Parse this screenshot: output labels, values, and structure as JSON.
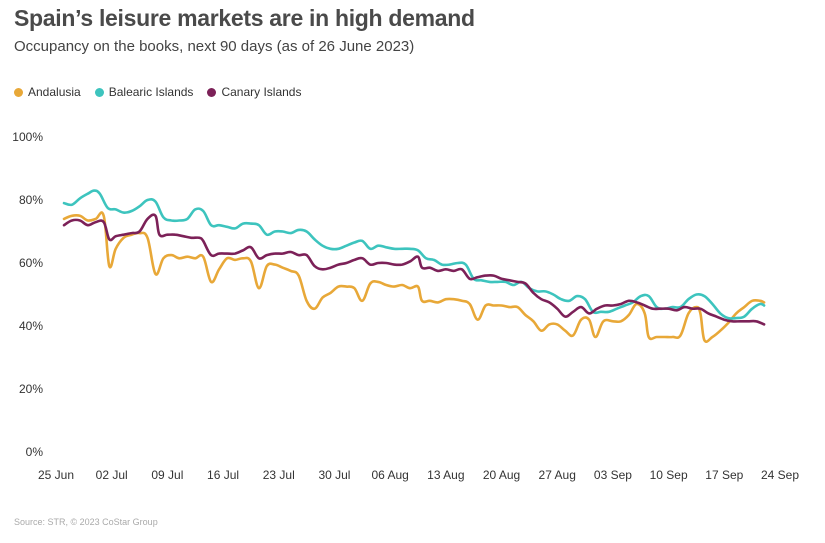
{
  "chart_data": {
    "type": "line",
    "title": "Spain’s leisure markets are in high demand",
    "subtitle": "Occupancy on the books, next 90 days (as of 26 June 2023)",
    "source": "Source: STR, © 2023 CoStar Group",
    "ylim": [
      0,
      100
    ],
    "yticks": [
      "0%",
      "20%",
      "40%",
      "60%",
      "80%",
      "100%"
    ],
    "ytick_values": [
      0,
      20,
      40,
      60,
      80,
      100
    ],
    "xlim": [
      0,
      91
    ],
    "xticks": [
      "25 Jun",
      "02 Jul",
      "09 Jul",
      "16 Jul",
      "23 Jul",
      "30 Jul",
      "06 Aug",
      "13 Aug",
      "20 Aug",
      "27 Aug",
      "03 Sep",
      "10 Sep",
      "17 Sep",
      "24 Sep"
    ],
    "xtick_values": [
      0,
      7,
      14,
      21,
      28,
      35,
      42,
      49,
      56,
      63,
      70,
      77,
      84,
      91
    ],
    "legend_position": "top-left",
    "grid": false,
    "series": [
      {
        "name": "Andalusia",
        "color": "#E8A838",
        "points": [
          [
            1,
            74
          ],
          [
            2,
            75
          ],
          [
            3,
            75
          ],
          [
            4,
            73.5
          ],
          [
            5,
            74
          ],
          [
            6,
            75
          ],
          [
            6.7,
            59
          ],
          [
            7.5,
            64.5
          ],
          [
            8.5,
            68
          ],
          [
            9.5,
            69
          ],
          [
            10.5,
            69.5
          ],
          [
            11.5,
            68
          ],
          [
            12.5,
            56.5
          ],
          [
            13.5,
            61.5
          ],
          [
            14.5,
            62.5
          ],
          [
            15.5,
            61.5
          ],
          [
            16.5,
            62
          ],
          [
            17.5,
            61.5
          ],
          [
            18.5,
            62
          ],
          [
            19.5,
            54
          ],
          [
            20.5,
            58
          ],
          [
            21.5,
            61.5
          ],
          [
            22.5,
            61
          ],
          [
            23.5,
            61.5
          ],
          [
            24.5,
            60.5
          ],
          [
            25.5,
            52
          ],
          [
            26.5,
            59
          ],
          [
            27.5,
            59.5
          ],
          [
            28.5,
            58.5
          ],
          [
            29.5,
            57.5
          ],
          [
            30.5,
            56
          ],
          [
            31.5,
            48
          ],
          [
            32.5,
            45.5
          ],
          [
            33.5,
            49
          ],
          [
            34.5,
            50.5
          ],
          [
            35.5,
            52.5
          ],
          [
            36.5,
            52.5
          ],
          [
            37.5,
            52
          ],
          [
            38.5,
            48
          ],
          [
            39.5,
            53.5
          ],
          [
            40.5,
            54
          ],
          [
            41.5,
            53
          ],
          [
            42.5,
            52.5
          ],
          [
            43.5,
            53
          ],
          [
            44.5,
            52
          ],
          [
            45.5,
            52.5
          ],
          [
            46,
            48
          ],
          [
            47,
            48
          ],
          [
            48,
            47.5
          ],
          [
            49,
            48.5
          ],
          [
            50,
            48.5
          ],
          [
            51,
            48
          ],
          [
            52,
            47
          ],
          [
            53,
            42
          ],
          [
            54,
            46.5
          ],
          [
            55,
            46.5
          ],
          [
            56,
            46.5
          ],
          [
            57,
            46
          ],
          [
            58,
            46
          ],
          [
            59,
            43.5
          ],
          [
            60,
            41.5
          ],
          [
            61,
            38.5
          ],
          [
            62,
            40.5
          ],
          [
            63,
            40.5
          ],
          [
            64,
            38.5
          ],
          [
            65,
            37
          ],
          [
            66,
            42
          ],
          [
            67,
            42
          ],
          [
            67.8,
            36.5
          ],
          [
            68.8,
            41.5
          ],
          [
            70,
            41.5
          ],
          [
            71,
            41.5
          ],
          [
            72,
            43.5
          ],
          [
            73,
            47
          ],
          [
            74,
            44
          ],
          [
            74.5,
            36.5
          ],
          [
            75.5,
            36.5
          ],
          [
            76.5,
            36.5
          ],
          [
            77.5,
            36.5
          ],
          [
            78.5,
            37
          ],
          [
            79.5,
            44
          ],
          [
            80.5,
            46
          ],
          [
            81,
            44
          ],
          [
            81.5,
            35.5
          ],
          [
            82.5,
            36.5
          ],
          [
            83.5,
            38.5
          ],
          [
            84.5,
            41
          ],
          [
            85.5,
            44
          ],
          [
            86.5,
            46
          ],
          [
            87.5,
            48
          ],
          [
            88.5,
            48
          ],
          [
            89,
            47.5
          ]
        ]
      },
      {
        "name": "Balearic Islands",
        "color": "#3DC4BE",
        "points": [
          [
            1,
            79
          ],
          [
            2,
            78.5
          ],
          [
            3,
            80.5
          ],
          [
            4,
            82
          ],
          [
            4.8,
            83
          ],
          [
            5.5,
            82
          ],
          [
            6.5,
            77.5
          ],
          [
            7.5,
            77
          ],
          [
            8.5,
            76
          ],
          [
            9.5,
            76.5
          ],
          [
            10.5,
            78
          ],
          [
            11.5,
            80
          ],
          [
            12.5,
            79.5
          ],
          [
            13.5,
            74.5
          ],
          [
            14.5,
            73.5
          ],
          [
            15.5,
            73.5
          ],
          [
            16.5,
            74
          ],
          [
            17.5,
            77
          ],
          [
            18.5,
            76.5
          ],
          [
            19.5,
            72
          ],
          [
            20.5,
            72
          ],
          [
            21.5,
            71.5
          ],
          [
            22.5,
            71
          ],
          [
            23.5,
            72.5
          ],
          [
            24.5,
            72.5
          ],
          [
            25.5,
            72
          ],
          [
            26.5,
            69
          ],
          [
            27.5,
            70
          ],
          [
            28.5,
            70
          ],
          [
            29.5,
            69.5
          ],
          [
            30.5,
            70.5
          ],
          [
            31.5,
            70
          ],
          [
            32.5,
            67.5
          ],
          [
            33.5,
            65.5
          ],
          [
            34.5,
            64.5
          ],
          [
            35.5,
            64.5
          ],
          [
            36.5,
            65.5
          ],
          [
            37.5,
            66.5
          ],
          [
            38.5,
            67
          ],
          [
            39.5,
            64.5
          ],
          [
            40.5,
            65.5
          ],
          [
            41.5,
            65
          ],
          [
            42.5,
            64.5
          ],
          [
            43.5,
            64.5
          ],
          [
            44.5,
            64.5
          ],
          [
            45.5,
            64
          ],
          [
            46.5,
            61.5
          ],
          [
            47.5,
            61
          ],
          [
            48.5,
            59.5
          ],
          [
            49.5,
            59.5
          ],
          [
            50.5,
            60
          ],
          [
            51.5,
            59.5
          ],
          [
            52.5,
            55
          ],
          [
            53.5,
            54.5
          ],
          [
            54.5,
            54
          ],
          [
            55.5,
            54
          ],
          [
            56.5,
            54
          ],
          [
            57.5,
            53
          ],
          [
            58.5,
            54
          ],
          [
            59.5,
            52
          ],
          [
            60.5,
            51
          ],
          [
            61.5,
            51
          ],
          [
            62.5,
            50
          ],
          [
            63.5,
            48.5
          ],
          [
            64.5,
            48
          ],
          [
            65.5,
            49.5
          ],
          [
            66.5,
            48.5
          ],
          [
            67.5,
            44.5
          ],
          [
            68.5,
            44.5
          ],
          [
            69.5,
            44.5
          ],
          [
            70.5,
            45.5
          ],
          [
            71.5,
            46.5
          ],
          [
            72.5,
            47.5
          ],
          [
            73.5,
            49.5
          ],
          [
            74.5,
            49.5
          ],
          [
            75.5,
            46
          ],
          [
            76.5,
            45.5
          ],
          [
            77.5,
            46
          ],
          [
            78.5,
            46
          ],
          [
            79.5,
            48.5
          ],
          [
            80.5,
            50
          ],
          [
            81.5,
            49.5
          ],
          [
            82.5,
            47
          ],
          [
            83.5,
            44
          ],
          [
            84.5,
            42.5
          ],
          [
            85.5,
            42.5
          ],
          [
            86.5,
            43
          ],
          [
            87.5,
            45.5
          ],
          [
            88.5,
            47
          ],
          [
            89,
            46.5
          ]
        ]
      },
      {
        "name": "Canary Islands",
        "color": "#7C2158",
        "points": [
          [
            1,
            72
          ],
          [
            2,
            73.5
          ],
          [
            3,
            73.5
          ],
          [
            4,
            72
          ],
          [
            5,
            73
          ],
          [
            6,
            73
          ],
          [
            6.7,
            67.5
          ],
          [
            7.5,
            68.5
          ],
          [
            8.5,
            69
          ],
          [
            9.5,
            69.5
          ],
          [
            10.5,
            70
          ],
          [
            11.5,
            74
          ],
          [
            12.5,
            75
          ],
          [
            13,
            69
          ],
          [
            14,
            69
          ],
          [
            15,
            69
          ],
          [
            16,
            68.5
          ],
          [
            17,
            68
          ],
          [
            18,
            68
          ],
          [
            18.5,
            67
          ],
          [
            19.5,
            62.5
          ],
          [
            20.5,
            63
          ],
          [
            21.5,
            63
          ],
          [
            22.5,
            63
          ],
          [
            23.5,
            64
          ],
          [
            24.5,
            65
          ],
          [
            25.5,
            61.5
          ],
          [
            26.5,
            62.5
          ],
          [
            27.5,
            63
          ],
          [
            28.5,
            63
          ],
          [
            29.5,
            63.5
          ],
          [
            30.5,
            62.5
          ],
          [
            31.5,
            62.5
          ],
          [
            32.5,
            59
          ],
          [
            33.5,
            58
          ],
          [
            34.5,
            58.5
          ],
          [
            35.5,
            59.5
          ],
          [
            36.5,
            60
          ],
          [
            37.5,
            61
          ],
          [
            38.5,
            61.5
          ],
          [
            39.5,
            59.5
          ],
          [
            40.5,
            60
          ],
          [
            41.5,
            60
          ],
          [
            42.5,
            59.5
          ],
          [
            43.5,
            59.5
          ],
          [
            44.5,
            60.5
          ],
          [
            45.5,
            62
          ],
          [
            46,
            58.5
          ],
          [
            47,
            58.5
          ],
          [
            48,
            57.5
          ],
          [
            49,
            58
          ],
          [
            50,
            57.5
          ],
          [
            51,
            58
          ],
          [
            52,
            55
          ],
          [
            53,
            55.5
          ],
          [
            54,
            56
          ],
          [
            55,
            56
          ],
          [
            56,
            55
          ],
          [
            57,
            54.5
          ],
          [
            58,
            54
          ],
          [
            59,
            53.5
          ],
          [
            60,
            50.5
          ],
          [
            61,
            48.5
          ],
          [
            62,
            47.5
          ],
          [
            63,
            45.5
          ],
          [
            64,
            43
          ],
          [
            65,
            44.5
          ],
          [
            66,
            46
          ],
          [
            67,
            44
          ],
          [
            68,
            45.5
          ],
          [
            69,
            46.5
          ],
          [
            70,
            46.5
          ],
          [
            71,
            47
          ],
          [
            72,
            48
          ],
          [
            73,
            47.5
          ],
          [
            74,
            46.5
          ],
          [
            75,
            45.5
          ],
          [
            76,
            45.5
          ],
          [
            77,
            45.5
          ],
          [
            78,
            45
          ],
          [
            79,
            46
          ],
          [
            80,
            45.5
          ],
          [
            81,
            45.5
          ],
          [
            82,
            44
          ],
          [
            83,
            43
          ],
          [
            84,
            42
          ],
          [
            85,
            41.5
          ],
          [
            86,
            41.5
          ],
          [
            87,
            41.5
          ],
          [
            88,
            41.5
          ],
          [
            89,
            40.5
          ]
        ]
      }
    ]
  }
}
